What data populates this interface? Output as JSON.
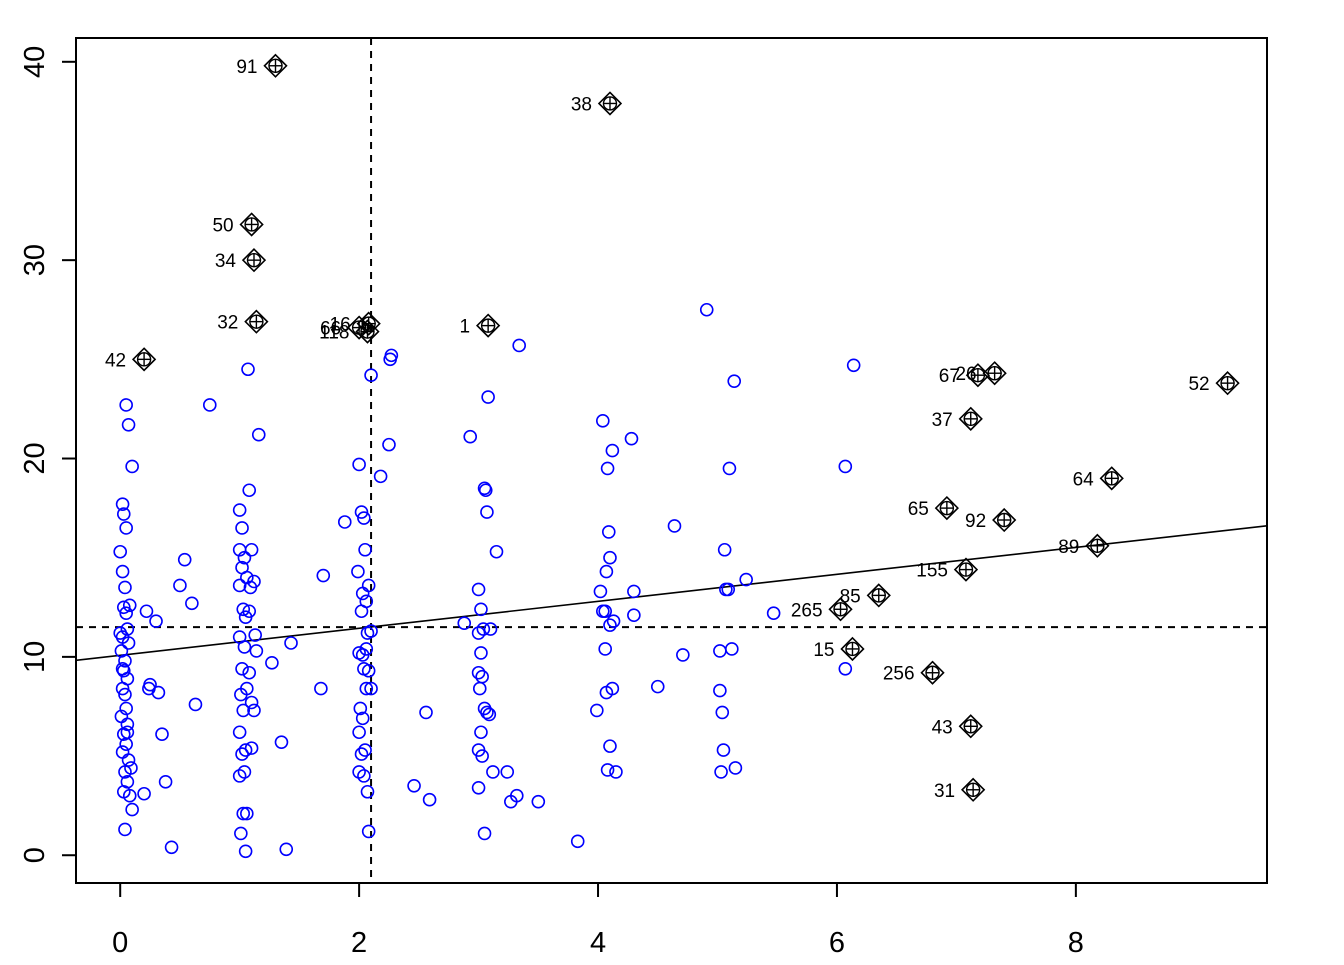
{
  "chart_data": {
    "type": "scatter",
    "title": "",
    "xlabel": "",
    "ylabel": "",
    "xlim": [
      -0.37,
      9.6
    ],
    "ylim": [
      -1.4,
      41.2
    ],
    "x_ticks": [
      0,
      2,
      4,
      6,
      8
    ],
    "y_ticks": [
      0,
      10,
      20,
      30,
      40
    ],
    "colors": {
      "points": "#0000ff",
      "influential": "#000000",
      "lines": "#000000"
    },
    "reference_lines": {
      "vertical_x": 2.1,
      "horizontal_y": 11.5,
      "regression": {
        "intercept": 10.08,
        "slope": 0.68
      }
    },
    "influential_points": [
      {
        "label": "91",
        "x": 1.3,
        "y": 39.8
      },
      {
        "label": "38",
        "x": 4.1,
        "y": 37.9
      },
      {
        "label": "50",
        "x": 1.1,
        "y": 31.8
      },
      {
        "label": "34",
        "x": 1.12,
        "y": 30.0
      },
      {
        "label": "32",
        "x": 1.14,
        "y": 26.9
      },
      {
        "label": "16",
        "x": 2.08,
        "y": 26.8
      },
      {
        "label": "66",
        "x": 2.0,
        "y": 26.6
      },
      {
        "label": "118",
        "x": 2.07,
        "y": 26.4
      },
      {
        "label": "1",
        "x": 3.08,
        "y": 26.7
      },
      {
        "label": "42",
        "x": 0.2,
        "y": 25.0
      },
      {
        "label": "26",
        "x": 7.32,
        "y": 24.3
      },
      {
        "label": "67",
        "x": 7.18,
        "y": 24.2
      },
      {
        "label": "52",
        "x": 9.27,
        "y": 23.8
      },
      {
        "label": "37",
        "x": 7.12,
        "y": 22.0
      },
      {
        "label": "64",
        "x": 8.3,
        "y": 19.0
      },
      {
        "label": "65",
        "x": 6.92,
        "y": 17.5
      },
      {
        "label": "92",
        "x": 7.4,
        "y": 16.9
      },
      {
        "label": "89",
        "x": 8.18,
        "y": 15.6
      },
      {
        "label": "155",
        "x": 7.08,
        "y": 14.4
      },
      {
        "label": "85",
        "x": 6.35,
        "y": 13.1
      },
      {
        "label": "265",
        "x": 6.03,
        "y": 12.4
      },
      {
        "label": "15",
        "x": 6.13,
        "y": 10.4
      },
      {
        "label": "256",
        "x": 6.8,
        "y": 9.2
      },
      {
        "label": "43",
        "x": 7.12,
        "y": 6.5
      },
      {
        "label": "31",
        "x": 7.14,
        "y": 3.3
      }
    ],
    "points": [
      [
        0.02,
        17.7
      ],
      [
        0.03,
        17.2
      ],
      [
        0.05,
        16.5
      ],
      [
        0.0,
        15.3
      ],
      [
        0.02,
        14.3
      ],
      [
        0.04,
        13.5
      ],
      [
        0.03,
        12.5
      ],
      [
        0.05,
        12.2
      ],
      [
        0.06,
        11.4
      ],
      [
        0.02,
        11.0
      ],
      [
        0.07,
        10.7
      ],
      [
        0.01,
        10.3
      ],
      [
        0.04,
        9.8
      ],
      [
        0.03,
        9.3
      ],
      [
        0.06,
        8.9
      ],
      [
        0.02,
        8.4
      ],
      [
        0.04,
        8.1
      ],
      [
        0.05,
        7.4
      ],
      [
        0.01,
        7.0
      ],
      [
        0.06,
        6.6
      ],
      [
        0.03,
        6.1
      ],
      [
        0.05,
        5.6
      ],
      [
        0.02,
        5.2
      ],
      [
        0.07,
        4.8
      ],
      [
        0.04,
        4.2
      ],
      [
        0.06,
        3.7
      ],
      [
        0.03,
        3.2
      ],
      [
        0.08,
        3.0
      ],
      [
        0.1,
        2.3
      ],
      [
        0.04,
        1.3
      ],
      [
        0.05,
        22.7
      ],
      [
        0.07,
        21.7
      ],
      [
        0.1,
        19.6
      ],
      [
        0.0,
        11.2
      ],
      [
        0.09,
        4.4
      ],
      [
        0.02,
        9.4
      ],
      [
        0.08,
        12.6
      ],
      [
        0.06,
        6.2
      ],
      [
        0.22,
        12.3
      ],
      [
        0.25,
        8.6
      ],
      [
        0.3,
        11.8
      ],
      [
        0.32,
        8.2
      ],
      [
        0.35,
        6.1
      ],
      [
        0.38,
        3.7
      ],
      [
        0.43,
        0.4
      ],
      [
        0.5,
        13.6
      ],
      [
        0.54,
        14.9
      ],
      [
        0.6,
        12.7
      ],
      [
        0.63,
        7.6
      ],
      [
        0.75,
        22.7
      ],
      [
        0.2,
        3.1
      ],
      [
        0.24,
        8.4
      ],
      [
        1.0,
        17.4
      ],
      [
        1.02,
        16.5
      ],
      [
        1.0,
        15.4
      ],
      [
        1.04,
        15.0
      ],
      [
        1.02,
        14.5
      ],
      [
        1.06,
        14.0
      ],
      [
        1.0,
        13.6
      ],
      [
        1.03,
        12.4
      ],
      [
        1.05,
        12.0
      ],
      [
        1.0,
        11.0
      ],
      [
        1.04,
        10.5
      ],
      [
        1.02,
        9.4
      ],
      [
        1.06,
        8.4
      ],
      [
        1.01,
        8.1
      ],
      [
        1.03,
        7.3
      ],
      [
        1.0,
        6.2
      ],
      [
        1.05,
        5.3
      ],
      [
        1.02,
        5.1
      ],
      [
        1.04,
        4.2
      ],
      [
        1.0,
        4.0
      ],
      [
        1.03,
        2.1
      ],
      [
        1.01,
        1.1
      ],
      [
        1.05,
        0.2
      ],
      [
        1.07,
        24.5
      ],
      [
        1.08,
        18.4
      ],
      [
        1.1,
        15.4
      ],
      [
        1.12,
        13.8
      ],
      [
        1.08,
        12.3
      ],
      [
        1.14,
        10.3
      ],
      [
        1.1,
        7.7
      ],
      [
        1.12,
        7.3
      ],
      [
        1.16,
        21.2
      ],
      [
        1.1,
        5.4
      ],
      [
        1.08,
        9.2
      ],
      [
        1.13,
        11.1
      ],
      [
        1.06,
        2.1
      ],
      [
        1.09,
        13.5
      ],
      [
        1.27,
        9.7
      ],
      [
        1.35,
        5.7
      ],
      [
        1.39,
        0.3
      ],
      [
        1.43,
        10.7
      ],
      [
        1.68,
        8.4
      ],
      [
        1.7,
        14.1
      ],
      [
        1.88,
        16.8
      ],
      [
        2.0,
        19.7
      ],
      [
        2.02,
        17.3
      ],
      [
        2.04,
        17.0
      ],
      [
        2.05,
        15.4
      ],
      [
        1.99,
        14.3
      ],
      [
        2.03,
        13.2
      ],
      [
        2.06,
        12.8
      ],
      [
        2.02,
        12.3
      ],
      [
        2.07,
        11.2
      ],
      [
        2.0,
        10.2
      ],
      [
        2.04,
        9.4
      ],
      [
        2.06,
        8.4
      ],
      [
        2.01,
        7.4
      ],
      [
        2.03,
        6.9
      ],
      [
        2.0,
        6.2
      ],
      [
        2.05,
        5.3
      ],
      [
        2.02,
        5.1
      ],
      [
        2.0,
        4.2
      ],
      [
        2.04,
        4.0
      ],
      [
        2.07,
        3.2
      ],
      [
        2.08,
        1.2
      ],
      [
        2.1,
        24.2
      ],
      [
        2.08,
        13.6
      ],
      [
        2.1,
        11.3
      ],
      [
        2.08,
        9.3
      ],
      [
        2.1,
        8.4
      ],
      [
        2.06,
        10.4
      ],
      [
        2.03,
        10.1
      ],
      [
        2.18,
        19.1
      ],
      [
        2.25,
        20.7
      ],
      [
        2.27,
        25.2
      ],
      [
        2.26,
        25.0
      ],
      [
        2.46,
        3.5
      ],
      [
        2.56,
        7.2
      ],
      [
        2.59,
        2.8
      ],
      [
        2.88,
        11.7
      ],
      [
        2.93,
        21.1
      ],
      [
        3.0,
        13.4
      ],
      [
        3.02,
        12.4
      ],
      [
        3.04,
        11.4
      ],
      [
        3.0,
        11.2
      ],
      [
        3.02,
        10.2
      ],
      [
        3.0,
        9.2
      ],
      [
        3.03,
        9.0
      ],
      [
        3.01,
        8.4
      ],
      [
        3.05,
        7.4
      ],
      [
        3.07,
        7.2
      ],
      [
        3.02,
        6.2
      ],
      [
        3.0,
        5.3
      ],
      [
        3.03,
        5.0
      ],
      [
        3.0,
        3.4
      ],
      [
        3.05,
        1.1
      ],
      [
        3.06,
        18.4
      ],
      [
        3.07,
        17.3
      ],
      [
        3.05,
        18.5
      ],
      [
        3.08,
        23.1
      ],
      [
        3.1,
        11.4
      ],
      [
        3.09,
        7.1
      ],
      [
        3.12,
        4.2
      ],
      [
        3.15,
        15.3
      ],
      [
        3.24,
        4.2
      ],
      [
        3.27,
        2.7
      ],
      [
        3.32,
        3.0
      ],
      [
        3.34,
        25.7
      ],
      [
        3.5,
        2.7
      ],
      [
        3.83,
        0.7
      ],
      [
        3.99,
        7.3
      ],
      [
        4.02,
        13.3
      ],
      [
        4.04,
        12.3
      ],
      [
        4.06,
        10.4
      ],
      [
        4.07,
        8.2
      ],
      [
        4.04,
        21.9
      ],
      [
        4.08,
        19.5
      ],
      [
        4.09,
        16.3
      ],
      [
        4.1,
        15.0
      ],
      [
        4.07,
        14.3
      ],
      [
        4.06,
        12.3
      ],
      [
        4.1,
        11.6
      ],
      [
        4.08,
        4.3
      ],
      [
        4.12,
        20.4
      ],
      [
        4.13,
        11.8
      ],
      [
        4.12,
        8.4
      ],
      [
        4.1,
        5.5
      ],
      [
        4.15,
        4.2
      ],
      [
        4.28,
        21.0
      ],
      [
        4.3,
        13.3
      ],
      [
        4.3,
        12.1
      ],
      [
        4.5,
        8.5
      ],
      [
        4.64,
        16.6
      ],
      [
        4.71,
        10.1
      ],
      [
        4.91,
        27.5
      ],
      [
        5.02,
        8.3
      ],
      [
        5.04,
        7.2
      ],
      [
        5.03,
        4.2
      ],
      [
        5.05,
        5.3
      ],
      [
        5.06,
        15.4
      ],
      [
        5.07,
        13.4
      ],
      [
        5.09,
        13.4
      ],
      [
        5.1,
        19.5
      ],
      [
        5.02,
        10.3
      ],
      [
        5.12,
        10.4
      ],
      [
        5.14,
        23.9
      ],
      [
        5.15,
        4.4
      ],
      [
        5.24,
        13.9
      ],
      [
        5.47,
        12.2
      ],
      [
        6.07,
        9.4
      ],
      [
        6.07,
        19.6
      ],
      [
        6.14,
        24.7
      ]
    ]
  }
}
